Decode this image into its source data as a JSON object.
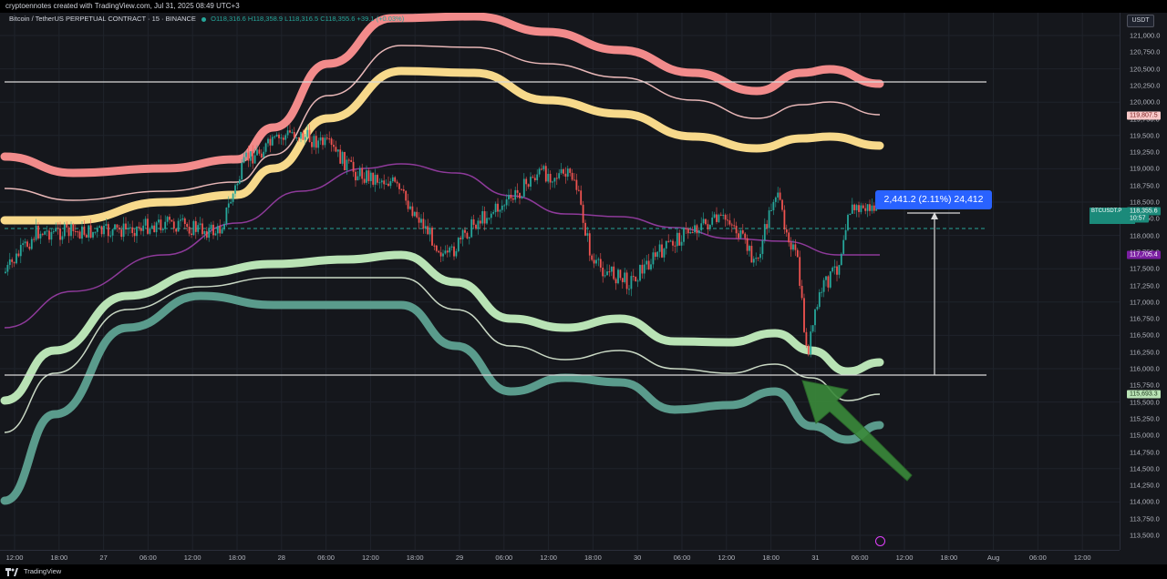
{
  "header": {
    "creator_line": "cryptoennotes created with TradingView.com, Jul 31, 2025 08:49 UTC+3",
    "symbol": "Bitcoin / TetherUS PERPETUAL CONTRACT · 15 · BINANCE",
    "ohlc": "O118,316.6 H118,358.9 L118,316.5 C118,355.6 +39.1 (+0.03%)"
  },
  "currency": "USDT",
  "price_axis": {
    "ticks": [
      "121,000.0",
      "120,750.0",
      "120,500.0",
      "120,250.0",
      "120,000.0",
      "119,750.0",
      "119,500.0",
      "119,250.0",
      "119,000.0",
      "118,750.0",
      "118,500.0",
      "118,250.0",
      "118,000.0",
      "117,750.0",
      "117,500.0",
      "117,250.0",
      "117,000.0",
      "116,750.0",
      "116,500.0",
      "116,250.0",
      "116,000.0",
      "115,750.0",
      "115,500.0",
      "115,250.0",
      "115,000.0",
      "114,750.0",
      "114,500.0",
      "114,250.0",
      "114,000.0",
      "113,750.0",
      "113,500.0"
    ]
  },
  "price_tags": {
    "upper_band": "119,807.5",
    "current_symbol": "BTCUSDT.P",
    "current_price": "118,355.6",
    "countdown": "10:57",
    "middle_band": "117,705.4",
    "low_level": "115,693.3"
  },
  "measure": {
    "label": "2,441.2 (2.11%) 24,412"
  },
  "time_axis": {
    "labels": [
      "12:00",
      "18:00",
      "27",
      "06:00",
      "12:00",
      "18:00",
      "28",
      "06:00",
      "12:00",
      "18:00",
      "29",
      "06:00",
      "12:00",
      "18:00",
      "30",
      "06:00",
      "12:00",
      "18:00",
      "31",
      "06:00",
      "12:00",
      "18:00",
      "Aug",
      "06:00",
      "12:00"
    ]
  },
  "footer": {
    "brand": "TradingView"
  },
  "colors": {
    "background": "#15171c",
    "upper_band_outer": "#f28b8b",
    "upper_band_inner": "#f7d98b",
    "lower_band_inner": "#b9e3b5",
    "lower_band_outer": "#5a9b8c",
    "middle_line": "#8e3a9a",
    "candle_up": "#26a69a",
    "candle_down": "#ef5350",
    "arrow": "#3a8a3a"
  }
}
